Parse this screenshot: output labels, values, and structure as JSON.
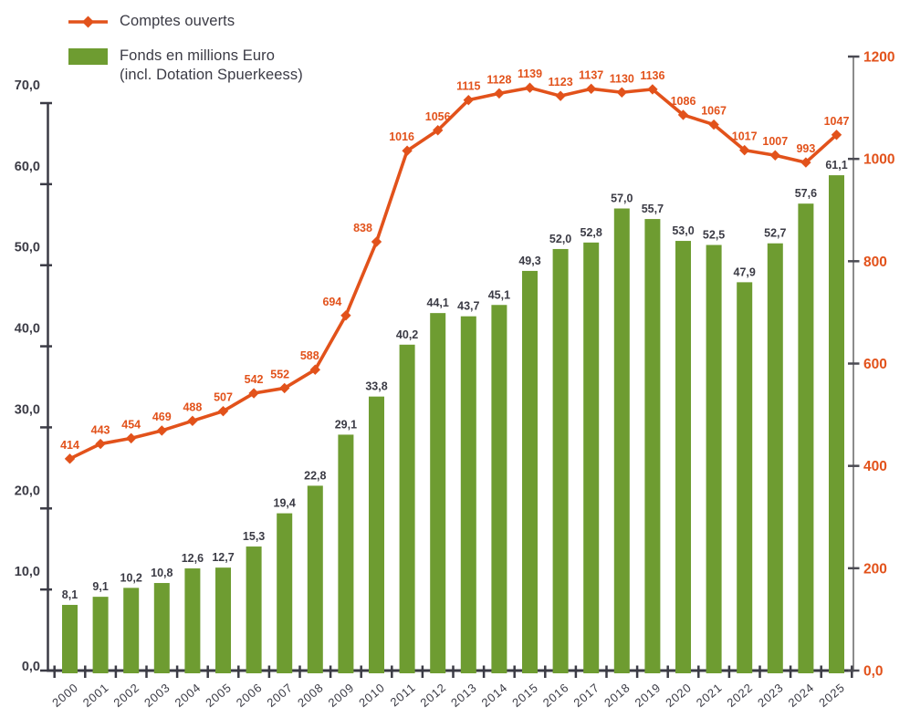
{
  "legend": {
    "items": [
      {
        "id": "comptes-ouverts",
        "label": "Comptes ouverts",
        "marker": "line-diamond",
        "color": "#e2521b"
      },
      {
        "id": "fonds",
        "label": "Fonds en millions Euro",
        "label_line2": "(incl. Dotation Spuerkeess)",
        "marker": "square",
        "color": "#6e9c31"
      }
    ]
  },
  "chart_data": {
    "type": "combo-bar-line",
    "title": "",
    "background": "#ffffff",
    "grid": false,
    "legend_position": "top-left",
    "text_color": "#3b3b45",
    "categories": [
      "2000",
      "2001",
      "2002",
      "2003",
      "2004",
      "2005",
      "2006",
      "2007",
      "2008",
      "2009",
      "2010",
      "2011",
      "2012",
      "2013",
      "2014",
      "2015",
      "2016",
      "2017",
      "2018",
      "2019",
      "2020",
      "2021",
      "2022",
      "2023",
      "2024",
      "2025"
    ],
    "series": [
      {
        "name": "Comptes ouverts",
        "type": "line",
        "axis": "right",
        "color": "#e2521b",
        "values": [
          414,
          443,
          454,
          469,
          488,
          507,
          542,
          552,
          588,
          694,
          838,
          1016,
          1056,
          1115,
          1128,
          1139,
          1123,
          1137,
          1130,
          1136,
          1086,
          1067,
          1017,
          1007,
          993,
          1047
        ],
        "point_labels": [
          "414",
          "443",
          "454",
          "469",
          "488",
          "507",
          "542",
          "552",
          "588",
          "694",
          "838",
          "1016",
          "1056",
          "1115",
          "1128",
          "1139",
          "1123",
          "1137",
          "1130",
          "1136",
          "1086",
          "1067",
          "1017",
          "1007",
          "993",
          "1047"
        ],
        "label_dx": [
          0,
          0,
          0,
          0,
          0,
          0,
          0,
          -5,
          -6,
          -15,
          -15,
          -6,
          0,
          0,
          0,
          0,
          0,
          0,
          0,
          0,
          0,
          0,
          0,
          0,
          0,
          0
        ]
      },
      {
        "name": "Fonds en millions Euro (incl. Dotation Spuerkeess)",
        "type": "bar",
        "axis": "left",
        "color": "#6e9c31",
        "values": [
          8.1,
          9.1,
          10.2,
          10.8,
          12.6,
          12.7,
          15.3,
          19.4,
          22.8,
          29.1,
          33.8,
          40.2,
          44.1,
          43.7,
          45.1,
          49.3,
          52.0,
          52.8,
          57.0,
          55.7,
          53.0,
          52.5,
          47.9,
          52.7,
          57.6,
          61.1
        ],
        "point_labels": [
          "8,1",
          "9,1",
          "10,2",
          "10,8",
          "12,6",
          "12,7",
          "15,3",
          "19,4",
          "22,8",
          "29,1",
          "33,8",
          "40,2",
          "44,1",
          "43,7",
          "45,1",
          "49,3",
          "52,0",
          "52,8",
          "57,0",
          "55,7",
          "53,0",
          "52,5",
          "47,9",
          "52,7",
          "57,6",
          "61,1"
        ]
      }
    ],
    "left_axis": {
      "min": 0,
      "max": 70,
      "step": 10,
      "tick_labels": [
        "0,0",
        "10,0",
        "20,0",
        "30,0",
        "40,0",
        "50,0",
        "60,0",
        "70,0"
      ],
      "label_color": "#3b3b45",
      "line_color": "#3b3b45"
    },
    "right_axis": {
      "min": 0,
      "max": 1200,
      "step": 200,
      "tick_labels": [
        "0,0",
        "200",
        "400",
        "600",
        "800",
        "1000",
        "1200"
      ],
      "label_color": "#e2521b",
      "line_color": "#8c8c8c"
    }
  }
}
